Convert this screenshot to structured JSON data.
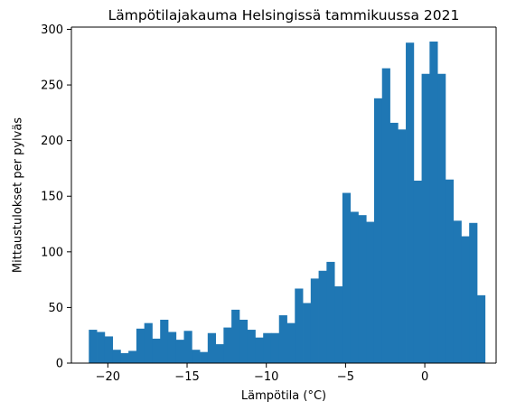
{
  "chart_data": {
    "type": "bar",
    "title": "Lämpötilajakauma Helsingissä tammikuussa 2021",
    "xlabel": "Lämpötila (°C)",
    "ylabel": "Mittaustulokset per pylväs",
    "xlim": [
      -22.3,
      4.5
    ],
    "ylim": [
      0,
      302
    ],
    "xticks": [
      -20,
      -15,
      -10,
      -5,
      0
    ],
    "xtick_labels": [
      "−20",
      "−15",
      "−10",
      "−5",
      "0"
    ],
    "yticks": [
      0,
      50,
      100,
      150,
      200,
      250,
      300
    ],
    "ytick_labels": [
      "0",
      "50",
      "100",
      "150",
      "200",
      "250",
      "300"
    ],
    "bin_start": -21.2,
    "bin_width": 0.5,
    "values": [
      30,
      28,
      24,
      12,
      9,
      11,
      31,
      36,
      22,
      39,
      28,
      21,
      29,
      12,
      10,
      27,
      17,
      32,
      48,
      39,
      30,
      23,
      27,
      27,
      43,
      36,
      67,
      54,
      76,
      83,
      91,
      69,
      153,
      136,
      133,
      127,
      238,
      265,
      216,
      210,
      288,
      164,
      260,
      289,
      260,
      165,
      128,
      114,
      126,
      61
    ],
    "color": "#1f77b4",
    "grid": false
  }
}
